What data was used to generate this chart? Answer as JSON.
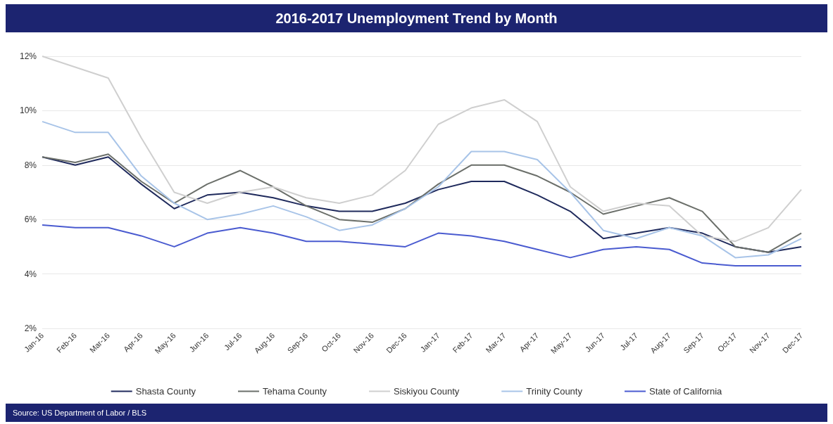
{
  "chart_data": {
    "type": "line",
    "title": "2016-2017 Unemployment Trend by Month",
    "annotations": [
      "Source: US Department of Labor / BLS"
    ],
    "categories": [
      "Jan-16",
      "Feb-16",
      "Mar-16",
      "Apr-16",
      "May-16",
      "Jun-16",
      "Jul-16",
      "Aug-16",
      "Sep-16",
      "Oct-16",
      "Nov-16",
      "Dec-16",
      "Jan-17",
      "Feb-17",
      "Mar-17",
      "Apr-17",
      "May-17",
      "Jun-17",
      "Jul-17",
      "Aug-17",
      "Sep-17",
      "Oct-17",
      "Nov-17",
      "Dec-17"
    ],
    "series": [
      {
        "name": "Shasta County",
        "color": "#1f2a5c",
        "values": [
          8.3,
          8.0,
          8.3,
          7.3,
          6.4,
          6.9,
          7.0,
          6.8,
          6.5,
          6.3,
          6.3,
          6.6,
          7.1,
          7.4,
          7.4,
          6.9,
          6.3,
          5.3,
          5.5,
          5.7,
          5.5,
          5.0,
          4.8,
          5.0
        ]
      },
      {
        "name": "Tehama County",
        "color": "#6b6f6a",
        "values": [
          8.3,
          8.1,
          8.4,
          7.4,
          6.6,
          7.3,
          7.8,
          7.2,
          6.5,
          6.0,
          5.9,
          6.4,
          7.3,
          8.0,
          8.0,
          7.6,
          7.0,
          6.2,
          6.5,
          6.8,
          6.3,
          5.0,
          4.8,
          5.5
        ]
      },
      {
        "name": "Siskiyou County",
        "color": "#cfcfcf",
        "values": [
          12.0,
          11.6,
          11.2,
          9.0,
          7.0,
          6.6,
          7.0,
          7.2,
          6.8,
          6.6,
          6.9,
          7.8,
          9.5,
          10.1,
          10.4,
          9.6,
          7.2,
          6.3,
          6.6,
          6.5,
          5.4,
          5.2,
          5.7,
          7.1
        ]
      },
      {
        "name": "Trinity County",
        "color": "#a8c4e8",
        "values": [
          9.6,
          9.2,
          9.2,
          7.6,
          6.6,
          6.0,
          6.2,
          6.5,
          6.1,
          5.6,
          5.8,
          6.4,
          7.2,
          8.5,
          8.5,
          8.2,
          7.0,
          5.6,
          5.3,
          5.7,
          5.4,
          4.6,
          4.7,
          5.3
        ]
      },
      {
        "name": "State of California",
        "color": "#4a5bd0",
        "values": [
          5.8,
          5.7,
          5.7,
          5.4,
          5.0,
          5.5,
          5.7,
          5.5,
          5.2,
          5.2,
          5.1,
          5.0,
          5.5,
          5.4,
          5.2,
          4.9,
          4.6,
          4.9,
          5.0,
          4.9,
          4.4,
          4.3,
          4.3,
          4.3
        ]
      }
    ],
    "ylim": [
      2,
      12
    ],
    "yticks": [
      {
        "value": 2,
        "label": "2%"
      },
      {
        "value": 4,
        "label": "4%"
      },
      {
        "value": 6,
        "label": "6%"
      },
      {
        "value": 8,
        "label": "8%"
      },
      {
        "value": 10,
        "label": "10%"
      },
      {
        "value": 12,
        "label": "12%"
      }
    ],
    "grid": "y",
    "legend": "bottom",
    "marker": "none",
    "line_style": "solid"
  }
}
